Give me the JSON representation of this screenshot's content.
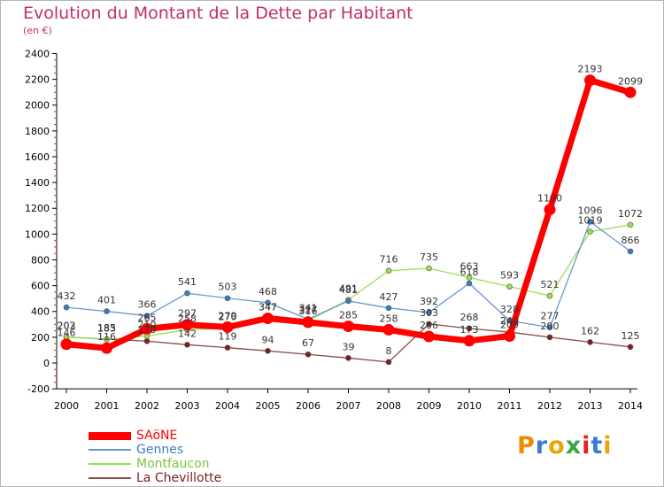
{
  "title": "Evolution du Montant de la Dette par Habitant",
  "unit_label": "(en €)",
  "brand": "Proxiti",
  "colors": {
    "title": "#c02d6e",
    "axis": "#000000",
    "grid_dot": "#c0245d"
  },
  "chart_data": {
    "type": "line",
    "title": "Evolution du Montant de la Dette par Habitant",
    "ylabel": "(en €)",
    "xlabel": "",
    "x": [
      2000,
      2001,
      2002,
      2003,
      2004,
      2005,
      2006,
      2007,
      2008,
      2009,
      2010,
      2011,
      2012,
      2013,
      2014
    ],
    "ylim": [
      -200,
      2400
    ],
    "yticks": [
      -200,
      0,
      200,
      400,
      600,
      800,
      1000,
      1200,
      1400,
      1600,
      1800,
      2000,
      2200,
      2400
    ],
    "grid": false,
    "legend_position": "bottom-left",
    "series": [
      {
        "name": "La Chevillotte",
        "color": "#7b2020",
        "linecolor": "#8a4a4a",
        "values": [
          202,
          185,
          170,
          142,
          119,
          94,
          67,
          39,
          8,
          303,
          268,
          240,
          200,
          162,
          125
        ]
      },
      {
        "name": "Montfaucon",
        "color": "#99e050",
        "linecolor": "#99e050",
        "values": [
          203,
          183,
          210,
          258,
          270,
          347,
          327,
          491,
          716,
          735,
          663,
          593,
          521,
          1019,
          1072
        ]
      },
      {
        "name": "Gennes",
        "color": "#3a7cc0",
        "linecolor": "#6699cc",
        "values": [
          432,
          401,
          366,
          541,
          503,
          468,
          341,
          481,
          427,
          392,
          618,
          328,
          277,
          1096,
          866
        ]
      },
      {
        "name": "SAöNE",
        "color": "#ff0000",
        "linecolor": "#ff0000",
        "values": [
          146,
          116,
          265,
          297,
          279,
          347,
          316,
          285,
          258,
          206,
          173,
          209,
          1190,
          2193,
          2099
        ]
      }
    ],
    "data_labels": [
      [
        "202",
        "185",
        "170",
        "142",
        "119",
        "94",
        "67",
        "39",
        "8",
        "303",
        "268",
        "240",
        "200",
        "162",
        "125"
      ],
      [
        "203",
        "183",
        "210",
        "258",
        "270",
        "347",
        "327",
        "491",
        "716",
        "735",
        "663",
        "593",
        "521",
        "1019",
        "1072"
      ],
      [
        "432",
        "401",
        "366",
        "541",
        "503",
        "468",
        "341",
        "481",
        "427",
        "392",
        "618",
        "328",
        "277",
        "1096",
        "866"
      ],
      [
        "146",
        "116",
        "265",
        "297",
        "279",
        "347",
        "316",
        "285",
        "258",
        "206",
        "173",
        "209",
        "1190",
        "2193",
        "2099"
      ]
    ]
  },
  "legend": [
    {
      "name": "SAöNE",
      "color": "#ff0000"
    },
    {
      "name": "Gennes",
      "color": "#3a7cc0"
    },
    {
      "name": "Montfaucon",
      "color": "#99e050"
    },
    {
      "name": "La Chevillotte",
      "color": "#7b2020"
    }
  ]
}
